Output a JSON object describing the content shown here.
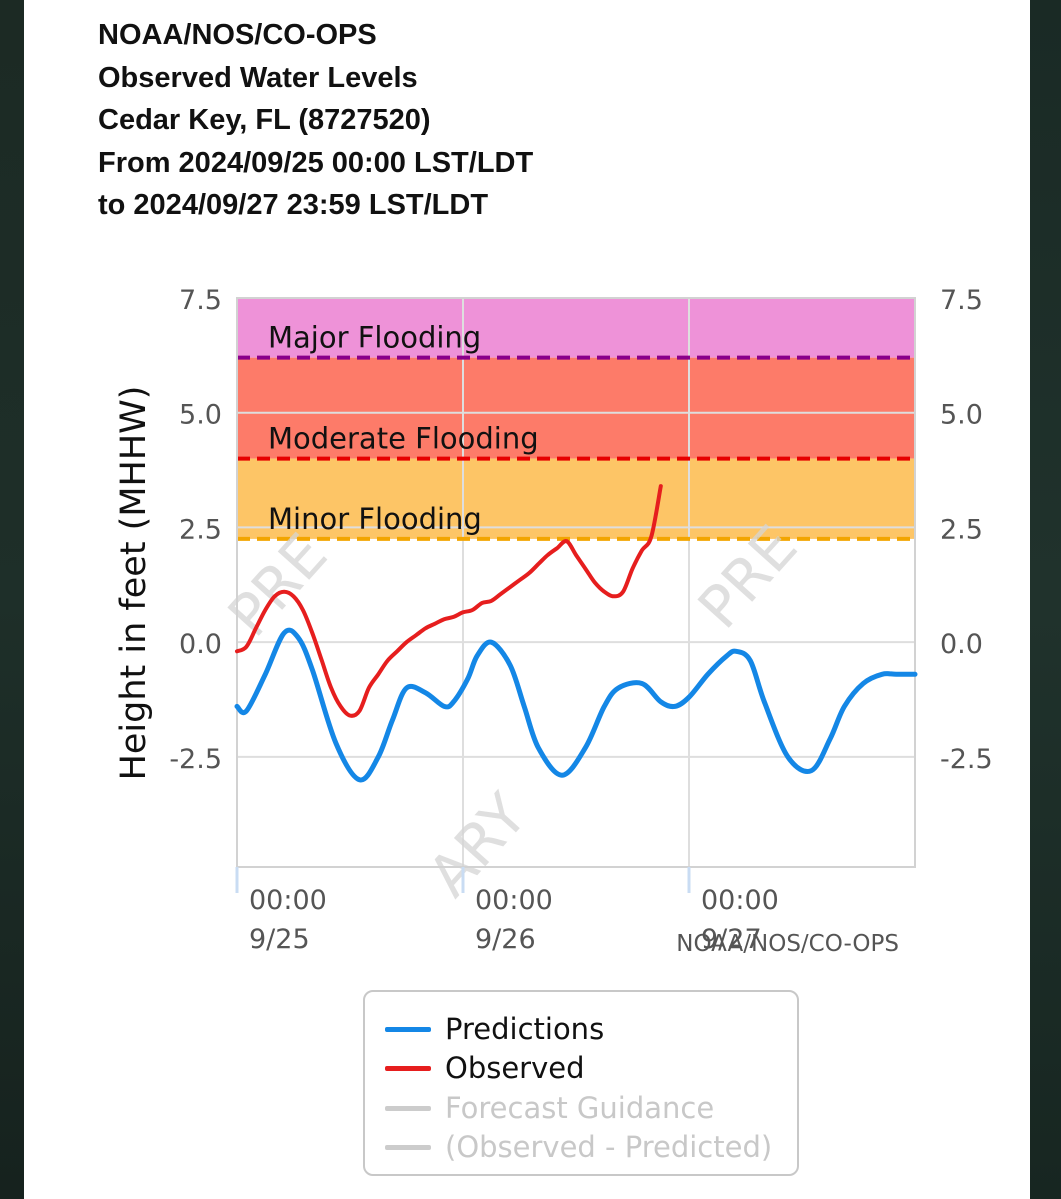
{
  "header": {
    "lines": [
      "NOAA/NOS/CO-OPS",
      "Observed Water Levels",
      "Cedar Key, FL (8727520)",
      "From 2024/09/25 00:00 LST/LDT",
      "to 2024/09/27 23:59 LST/LDT"
    ]
  },
  "chart_data": {
    "type": "line",
    "ylabel": "Height in feet (MHHW)",
    "ylim": [
      -4.9,
      7.5
    ],
    "y_ticks": [
      "7.5",
      "5.0",
      "2.5",
      "0.0",
      "-2.5"
    ],
    "y_tick_values": [
      7.5,
      5.0,
      2.5,
      0.0,
      -2.5
    ],
    "xlim_hours": [
      0,
      72
    ],
    "x_ticks": [
      {
        "time": "00:00",
        "date": "9/25",
        "hour": 0
      },
      {
        "time": "00:00",
        "date": "9/26",
        "hour": 24
      },
      {
        "time": "00:00",
        "date": "9/27",
        "hour": 48
      }
    ],
    "watermark": "PRELIMINARY",
    "credit": "NOAA/NOS/CO-OPS",
    "flood_bands": [
      {
        "label": "Major Flooding",
        "threshold": 6.2,
        "upper": 7.5,
        "fill": "#ee92d8",
        "line": "#8a008a"
      },
      {
        "label": "Moderate Flooding",
        "threshold": 4.0,
        "upper": 6.2,
        "fill": "#fd7b69",
        "line": "#e60000"
      },
      {
        "label": "Minor Flooding",
        "threshold": 2.25,
        "upper": 4.0,
        "fill": "#fdc566",
        "line": "#f2a500"
      }
    ],
    "series": [
      {
        "name": "Predictions",
        "color": "#1487e6",
        "x": [
          0,
          1,
          3,
          5,
          6.5,
          8,
          10.5,
          13,
          15,
          16.5,
          18,
          20,
          22,
          23,
          24.5,
          25.5,
          27,
          29,
          30.5,
          32,
          34.5,
          37,
          39,
          40.5,
          43,
          45,
          46.5,
          48,
          50,
          52,
          53,
          54.5,
          56,
          58.5,
          61,
          63,
          64.5,
          66.5,
          68.5,
          70,
          72
        ],
        "values": [
          -1.4,
          -1.5,
          -0.7,
          0.2,
          0.1,
          -0.6,
          -2.2,
          -3.0,
          -2.5,
          -1.7,
          -1.0,
          -1.1,
          -1.4,
          -1.3,
          -0.8,
          -0.3,
          0.0,
          -0.5,
          -1.4,
          -2.3,
          -2.9,
          -2.3,
          -1.4,
          -1.0,
          -0.9,
          -1.3,
          -1.4,
          -1.2,
          -0.7,
          -0.3,
          -0.2,
          -0.4,
          -1.3,
          -2.5,
          -2.8,
          -2.1,
          -1.4,
          -0.9,
          -0.7,
          -0.7,
          -0.7
        ]
      },
      {
        "name": "Observed",
        "color": "#e61e1e",
        "x": [
          0,
          1,
          2,
          3,
          4,
          5,
          6,
          7,
          8,
          9,
          10,
          11,
          12,
          13,
          14,
          15,
          16,
          17,
          18,
          19,
          20,
          21,
          22,
          23,
          24,
          25,
          26,
          27,
          28,
          29,
          30,
          31,
          32,
          33,
          34,
          35,
          36,
          37,
          38,
          39,
          40,
          41,
          42,
          43,
          44,
          45
        ],
        "values": [
          -0.2,
          -0.1,
          0.3,
          0.7,
          1.0,
          1.1,
          1.0,
          0.7,
          0.2,
          -0.4,
          -1.0,
          -1.4,
          -1.6,
          -1.5,
          -1.0,
          -0.7,
          -0.4,
          -0.2,
          0.0,
          0.15,
          0.3,
          0.4,
          0.5,
          0.55,
          0.65,
          0.7,
          0.85,
          0.9,
          1.05,
          1.2,
          1.35,
          1.5,
          1.7,
          1.9,
          2.05,
          2.2,
          1.9,
          1.6,
          1.3,
          1.1,
          1.0,
          1.1,
          1.6,
          2.0,
          2.3,
          3.4
        ]
      }
    ],
    "legend": [
      {
        "label": "Predictions",
        "color": "#1487e6",
        "active": true
      },
      {
        "label": "Observed",
        "color": "#e61e1e",
        "active": true
      },
      {
        "label": "Forecast Guidance",
        "color": "#cccccc",
        "active": false
      },
      {
        "label": "(Observed - Predicted)",
        "color": "#cccccc",
        "active": false
      }
    ],
    "grid": true
  }
}
